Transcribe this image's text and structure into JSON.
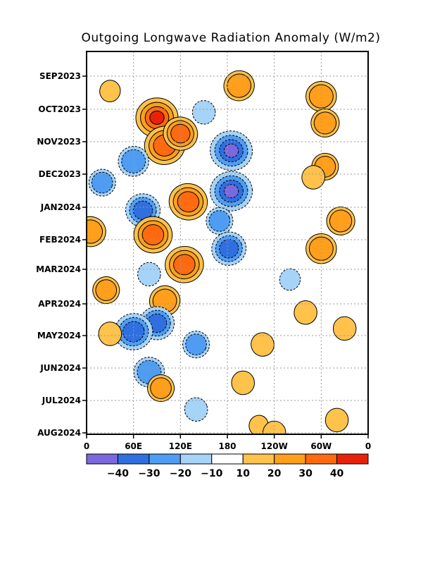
{
  "chart_data": {
    "type": "heatmap",
    "title": "Outgoing Longwave Radiation Anomaly (W/m2)",
    "x_tick_labels": [
      "0",
      "60E",
      "120E",
      "180",
      "120W",
      "60W",
      "0"
    ],
    "y_tick_labels": [
      "SEP2023",
      "OCT2023",
      "NOV2023",
      "DEC2023",
      "JAN2024",
      "FEB2024",
      "MAR2024",
      "APR2024",
      "MAY2024",
      "JUN2024",
      "JUL2024",
      "AUG2024"
    ],
    "grid": "dotted",
    "colorbar": {
      "colors": [
        "#7b68dc",
        "#2f6fe0",
        "#4f9df2",
        "#a6d3f8",
        "#ffffff",
        "#ffc24b",
        "#ff9f1c",
        "#ff6a10",
        "#e8220a"
      ],
      "labels": [
        "−40",
        "−30",
        "−20",
        "−10",
        "10",
        "20",
        "30",
        "40"
      ]
    },
    "anomaly_features": [
      {
        "lon": 195,
        "date": "2023-09-10",
        "value": 25
      },
      {
        "lon": 30,
        "date": "2023-09-15",
        "value": 12
      },
      {
        "lon": 90,
        "date": "2023-10-10",
        "value": 40
      },
      {
        "lon": 100,
        "date": "2023-11-05",
        "value": 38
      },
      {
        "lon": 120,
        "date": "2023-10-25",
        "value": 30
      },
      {
        "lon": 130,
        "date": "2023-12-28",
        "value": 35
      },
      {
        "lon": 300,
        "date": "2023-09-20",
        "value": 25
      },
      {
        "lon": 305,
        "date": "2023-10-15",
        "value": 22
      },
      {
        "lon": 305,
        "date": "2023-11-25",
        "value": 20
      },
      {
        "lon": 185,
        "date": "2023-11-10",
        "value": -40
      },
      {
        "lon": 185,
        "date": "2023-12-18",
        "value": -40
      },
      {
        "lon": 60,
        "date": "2023-11-20",
        "value": -25
      },
      {
        "lon": 20,
        "date": "2023-12-10",
        "value": -20
      },
      {
        "lon": 72,
        "date": "2024-01-05",
        "value": -30
      },
      {
        "lon": 150,
        "date": "2023-10-05",
        "value": -15
      },
      {
        "lon": 170,
        "date": "2024-01-15",
        "value": -20
      },
      {
        "lon": 290,
        "date": "2023-12-05",
        "value": 15
      },
      {
        "lon": 85,
        "date": "2024-01-28",
        "value": 35
      },
      {
        "lon": 125,
        "date": "2024-02-25",
        "value": 35
      },
      {
        "lon": 182,
        "date": "2024-02-10",
        "value": -30
      },
      {
        "lon": 5,
        "date": "2024-01-25",
        "value": 25
      },
      {
        "lon": 300,
        "date": "2024-02-10",
        "value": 25
      },
      {
        "lon": 325,
        "date": "2024-01-15",
        "value": 22
      },
      {
        "lon": 100,
        "date": "2024-03-30",
        "value": 25
      },
      {
        "lon": 80,
        "date": "2024-03-05",
        "value": -15
      },
      {
        "lon": 90,
        "date": "2024-04-20",
        "value": -30
      },
      {
        "lon": 60,
        "date": "2024-04-28",
        "value": -35
      },
      {
        "lon": 140,
        "date": "2024-05-10",
        "value": -20
      },
      {
        "lon": 80,
        "date": "2024-06-05",
        "value": -25
      },
      {
        "lon": 30,
        "date": "2024-04-30",
        "value": 15
      },
      {
        "lon": 25,
        "date": "2024-03-20",
        "value": 20
      },
      {
        "lon": 95,
        "date": "2024-06-20",
        "value": 20
      },
      {
        "lon": 280,
        "date": "2024-04-10",
        "value": 15
      },
      {
        "lon": 330,
        "date": "2024-04-25",
        "value": 15
      },
      {
        "lon": 225,
        "date": "2024-05-10",
        "value": 15
      },
      {
        "lon": 260,
        "date": "2024-03-10",
        "value": -12
      },
      {
        "lon": 320,
        "date": "2024-07-20",
        "value": 15
      },
      {
        "lon": 200,
        "date": "2024-06-15",
        "value": 15
      },
      {
        "lon": 140,
        "date": "2024-07-10",
        "value": -15
      },
      {
        "lon": 220,
        "date": "2024-07-25",
        "value": 10
      },
      {
        "lon": 240,
        "date": "2024-08-01",
        "value": 15
      }
    ]
  }
}
